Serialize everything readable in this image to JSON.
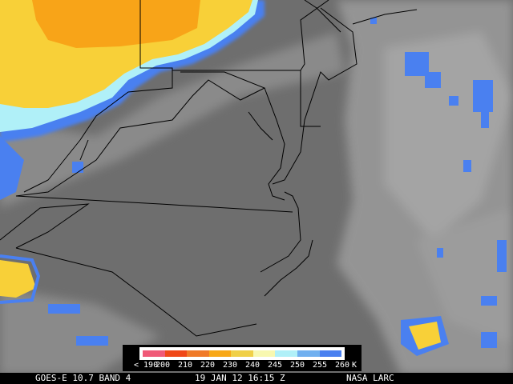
{
  "caption": {
    "satellite": "GOES-E 10.7 BAND 4",
    "datetime": "19 JAN 12 16:15 Z",
    "credit": "NASA LARC"
  },
  "legend": {
    "unit": "K",
    "labels": [
      "< 190",
      "200",
      "210",
      "220",
      "230",
      "240",
      "245",
      "250",
      "255",
      "260"
    ],
    "colors": [
      "#f05a78",
      "#f04818",
      "#f07a28",
      "#f8a818",
      "#f0d048",
      "#f8f8b0",
      "#b0f0f8",
      "#70b0f0",
      "#4a80f0"
    ]
  },
  "image_colors": {
    "background_gray": "#6e6e6e",
    "cloud_gray": "#9a9a9a",
    "cold_yellow": "#f8c830",
    "cold_orange": "#f8a010",
    "cold_blue": "#4a80f0",
    "border_lines": "#000000"
  }
}
